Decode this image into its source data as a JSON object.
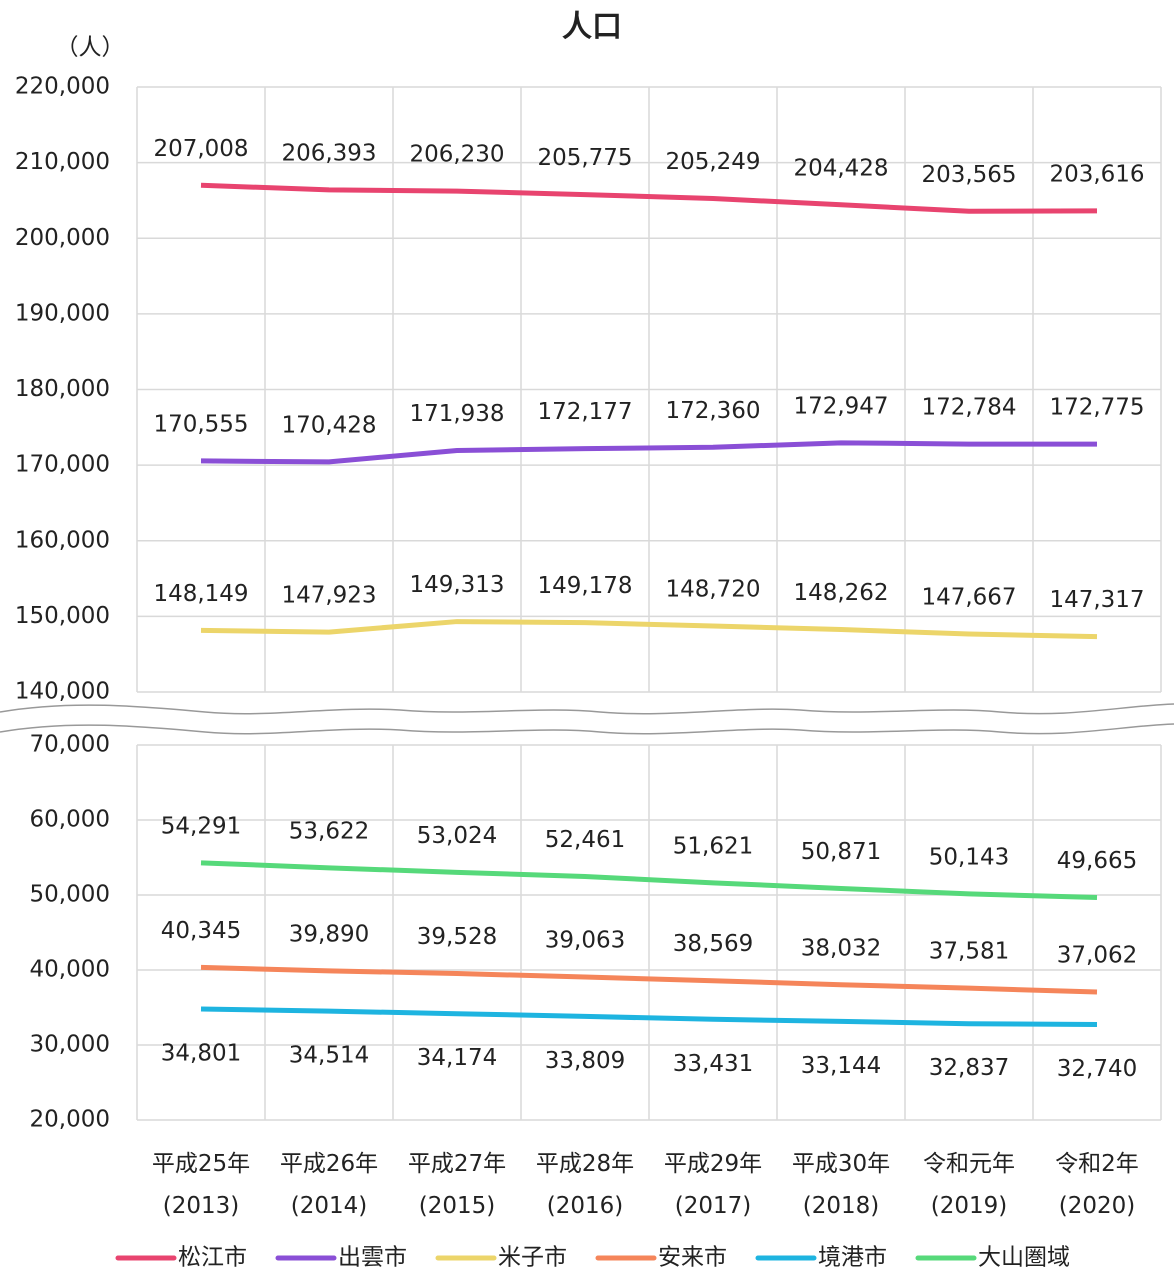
{
  "chart_data": [
    {
      "type": "line",
      "title": "人口",
      "y_label": "（人）",
      "ylim": [
        140000,
        220000
      ],
      "yticks": [
        {
          "value": 140000,
          "label": "140,000"
        },
        {
          "value": 150000,
          "label": "150,000"
        },
        {
          "value": 160000,
          "label": "160,000"
        },
        {
          "value": 170000,
          "label": "170,000"
        },
        {
          "value": 180000,
          "label": "180,000"
        },
        {
          "value": 190000,
          "label": "190,000"
        },
        {
          "value": 200000,
          "label": "200,000"
        },
        {
          "value": 210000,
          "label": "210,000"
        },
        {
          "value": 220000,
          "label": "220,000"
        }
      ],
      "grid": true,
      "series": [
        {
          "name": "松江市",
          "color": "#e8446f",
          "values": [
            207008,
            206393,
            206230,
            205775,
            205249,
            204428,
            203565,
            203616
          ],
          "value_labels": [
            "207,008",
            "206,393",
            "206,230",
            "205,775",
            "205,249",
            "204,428",
            "203,565",
            "203,616"
          ]
        },
        {
          "name": "出雲市",
          "color": "#8a4fd6",
          "values": [
            170555,
            170428,
            171938,
            172177,
            172360,
            172947,
            172784,
            172775
          ],
          "value_labels": [
            "170,555",
            "170,428",
            "171,938",
            "172,177",
            "172,360",
            "172,947",
            "172,784",
            "172,775"
          ]
        },
        {
          "name": "米子市",
          "color": "#ecd56a",
          "values": [
            148149,
            147923,
            149313,
            149178,
            148720,
            148262,
            147667,
            147317
          ],
          "value_labels": [
            "148,149",
            "147,923",
            "149,313",
            "149,178",
            "148,720",
            "148,262",
            "147,667",
            "147,317"
          ]
        }
      ]
    },
    {
      "type": "line",
      "categories": [
        "平成25年\n(2013)",
        "平成26年\n(2014)",
        "平成27年\n(2015)",
        "平成28年\n(2016)",
        "平成29年\n(2017)",
        "平成30年\n(2018)",
        "令和元年\n(2019)",
        "令和2年\n(2020)"
      ],
      "ylim": [
        20000,
        70000
      ],
      "yticks": [
        {
          "value": 20000,
          "label": "20,000"
        },
        {
          "value": 30000,
          "label": "30,000"
        },
        {
          "value": 40000,
          "label": "40,000"
        },
        {
          "value": 50000,
          "label": "50,000"
        },
        {
          "value": 60000,
          "label": "60,000"
        },
        {
          "value": 70000,
          "label": "70,000"
        }
      ],
      "grid": true,
      "series": [
        {
          "name": "安来市",
          "color": "#f5855a",
          "values": [
            40345,
            39890,
            39528,
            39063,
            38569,
            38032,
            37581,
            37062
          ],
          "value_labels": [
            "40,345",
            "39,890",
            "39,528",
            "39,063",
            "38,569",
            "38,032",
            "37,581",
            "37,062"
          ]
        },
        {
          "name": "境港市",
          "color": "#1eb4e0",
          "values": [
            34801,
            34514,
            34174,
            33809,
            33431,
            33144,
            32837,
            32740
          ],
          "value_labels": [
            "34,801",
            "34,514",
            "34,174",
            "33,809",
            "33,431",
            "33,144",
            "32,837",
            "32,740"
          ],
          "label_position": "below"
        },
        {
          "name": "大山圏域",
          "color": "#56d97a",
          "values": [
            54291,
            53622,
            53024,
            52461,
            51621,
            50871,
            50143,
            49665
          ],
          "value_labels": [
            "54,291",
            "53,622",
            "53,024",
            "52,461",
            "51,621",
            "50,871",
            "50,143",
            "49,665"
          ]
        }
      ]
    }
  ]
}
